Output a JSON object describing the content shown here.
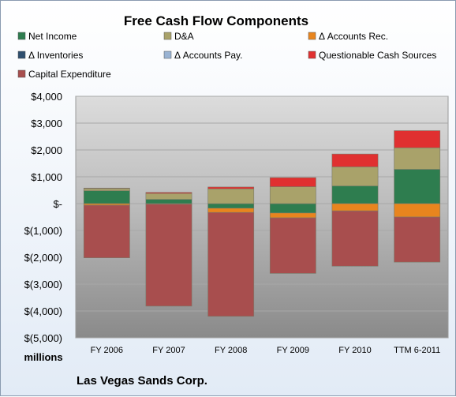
{
  "chart_data": {
    "type": "bar",
    "stacked": true,
    "title": "Free Cash Flow Components",
    "categories": [
      "FY 2006",
      "FY 2007",
      "FY 2008",
      "FY 2009",
      "FY 2010",
      "TTM 6-2011"
    ],
    "ylim": [
      -5000,
      4000
    ],
    "yticks": [
      4000,
      3000,
      2000,
      1000,
      0,
      -1000,
      -2000,
      -3000,
      -4000,
      -5000
    ],
    "ytick_labels": [
      "$4,000",
      "$3,000",
      "$2,000",
      "$1,000",
      "$-",
      "$(1,000)",
      "$(2,000)",
      "$(3,000)",
      "$(4,000)",
      "$(5,000)"
    ],
    "unit_label": "millions",
    "footer": "Las Vegas Sands Corp.",
    "legend_position": "top",
    "grid": true,
    "series": [
      {
        "name": "Net Income",
        "color": "#2e7d4f",
        "values": [
          480,
          160,
          -170,
          -350,
          660,
          1280
        ]
      },
      {
        "name": "D&A",
        "color": "#a9a26a",
        "values": [
          80,
          220,
          550,
          630,
          710,
          800
        ]
      },
      {
        "name": "Δ Accounts Rec.",
        "color": "#e8851e",
        "values": [
          -60,
          -20,
          -160,
          -180,
          -270,
          -500
        ]
      },
      {
        "name": "Δ Inventories",
        "color": "#2f4f6f",
        "values": [
          0,
          0,
          0,
          0,
          0,
          0
        ]
      },
      {
        "name": "Δ Accounts Pay.",
        "color": "#9ab3d3",
        "values": [
          0,
          0,
          0,
          0,
          0,
          0
        ]
      },
      {
        "name": "Questionable Cash Sources",
        "color": "#e03030",
        "values": [
          20,
          40,
          70,
          340,
          480,
          640
        ]
      },
      {
        "name": "Capital Expenditure",
        "color": "#a84e4e",
        "values": [
          -1960,
          -3800,
          -3870,
          -2070,
          -2060,
          -1680
        ]
      }
    ]
  }
}
